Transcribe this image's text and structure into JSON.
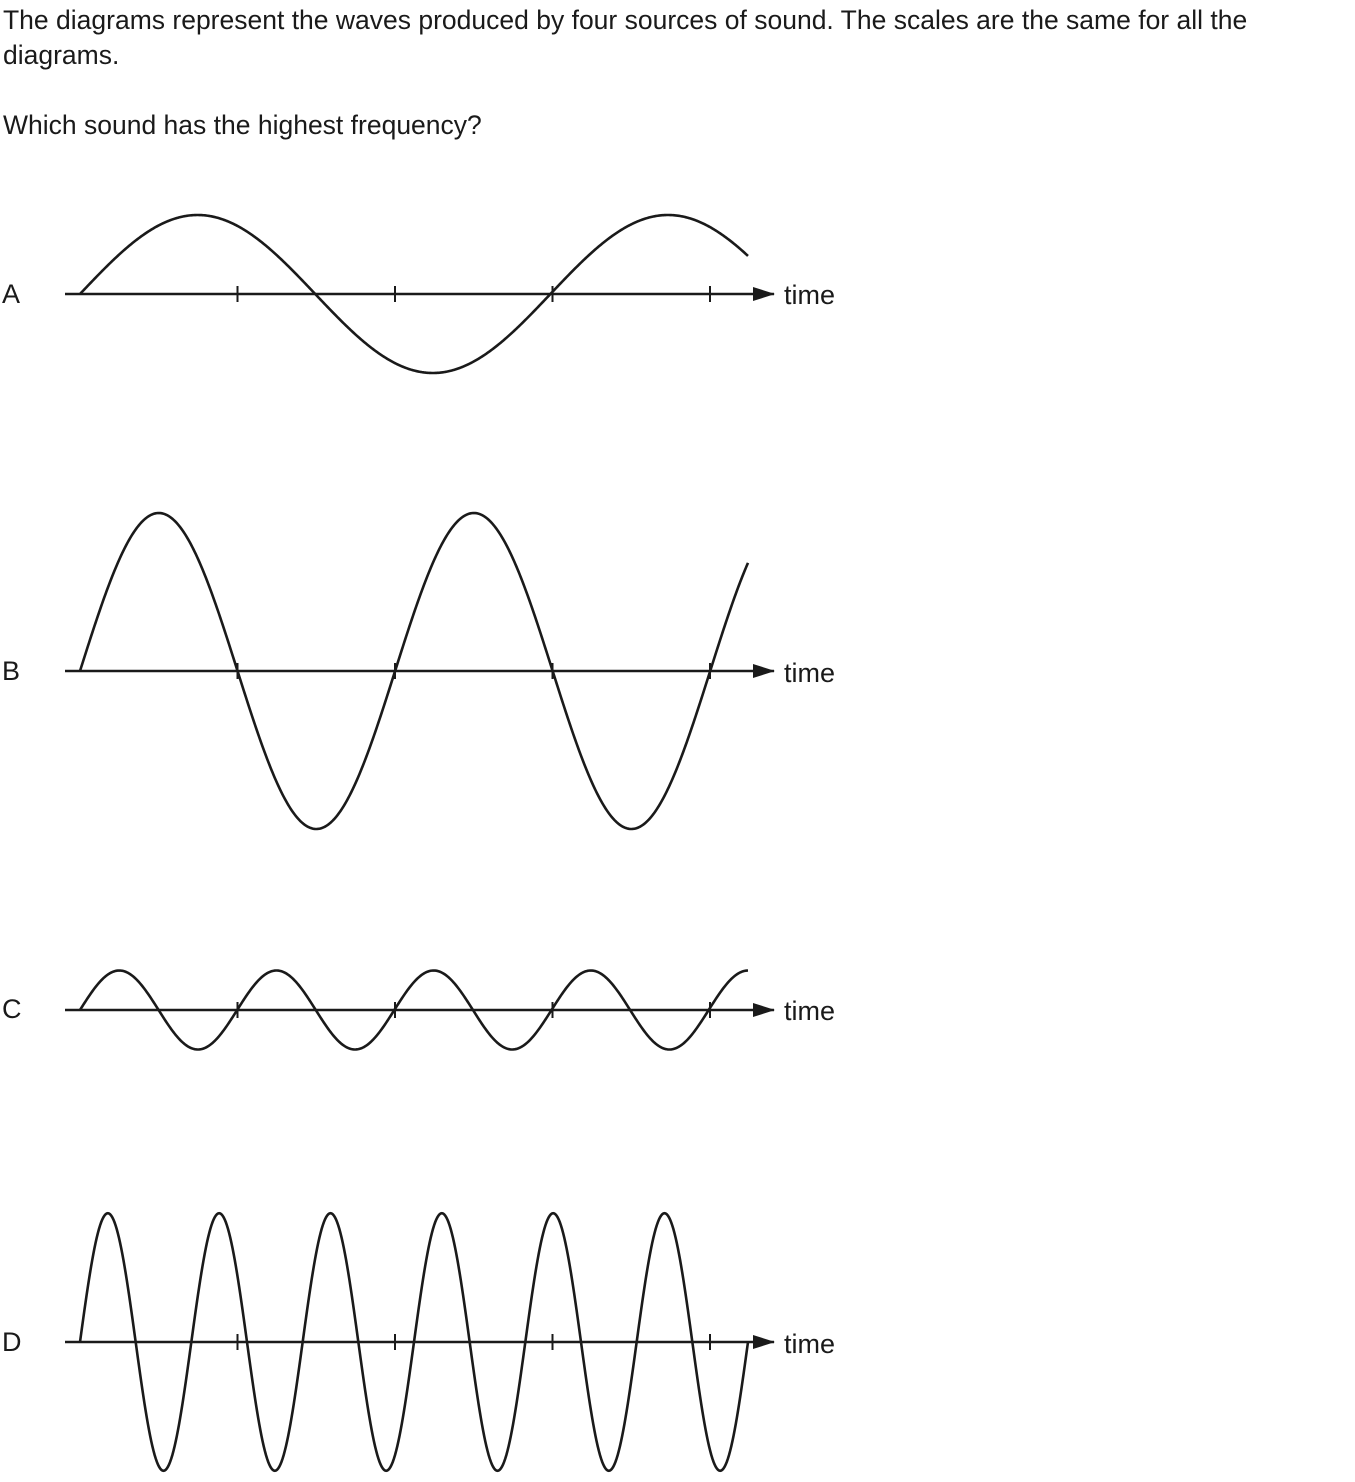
{
  "question": {
    "stem": "The diagrams represent the waves produced by four sources of sound. The scales are the same for all the diagrams.",
    "prompt": "Which sound has the highest frequency?"
  },
  "axis_label": "time",
  "colors": {
    "ink": "#1a1a1a",
    "background": "#ffffff"
  },
  "tick_count": 4,
  "waves": [
    {
      "letter": "A",
      "cycles": 1.42,
      "amplitude": 1.0
    },
    {
      "letter": "B",
      "cycles": 2.12,
      "amplitude": 2.0
    },
    {
      "letter": "C",
      "cycles": 4.25,
      "amplitude": 0.5
    },
    {
      "letter": "D",
      "cycles": 6.0,
      "amplitude": 1.63
    }
  ]
}
